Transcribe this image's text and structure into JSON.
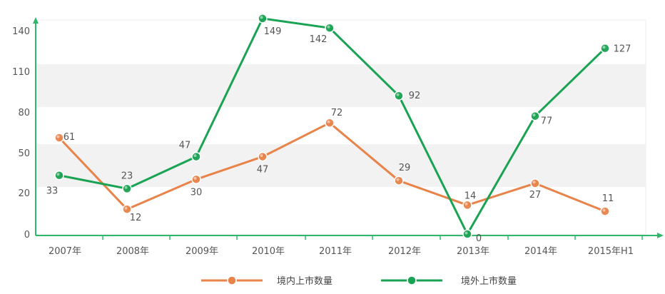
{
  "chart_data": {
    "type": "line",
    "categories": [
      "2007年",
      "2008年",
      "2009年",
      "2010年",
      "2011年",
      "2012年",
      "2013年",
      "2014年",
      "2015年H1"
    ],
    "yticks": [
      0,
      20,
      50,
      80,
      110,
      140
    ],
    "series": [
      {
        "name": "境内上市数量",
        "color": "#e8834a",
        "values": [
          61,
          12,
          30,
          47,
          72,
          29,
          14,
          27,
          11
        ]
      },
      {
        "name": "境外上市数量",
        "color": "#1aa353",
        "values": [
          33,
          23,
          47,
          149,
          142,
          92,
          0,
          77,
          127
        ]
      }
    ],
    "axis_color": "#2fb86a",
    "band_color": "#f2f2f2",
    "legend_position": "bottom"
  }
}
